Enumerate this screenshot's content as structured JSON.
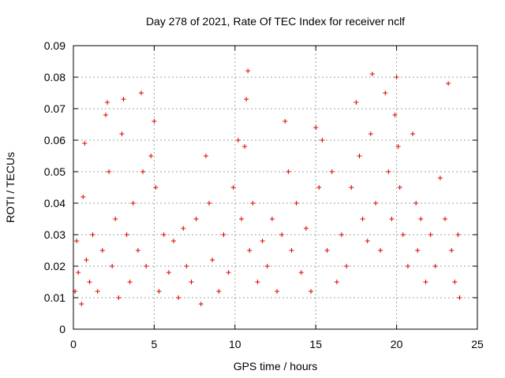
{
  "chart_data": {
    "type": "scatter",
    "title": "Day 278 of 2021, Rate Of TEC Index for receiver nclf",
    "xlabel": "GPS time / hours",
    "ylabel": "ROTI / TECUs",
    "xlim": [
      0,
      25
    ],
    "ylim": [
      0,
      0.09
    ],
    "x_ticks": [
      "0",
      "5",
      "10",
      "15",
      "20",
      "25"
    ],
    "x_tick_values": [
      0,
      5,
      10,
      15,
      20,
      25
    ],
    "y_ticks": [
      "0",
      "0.01",
      "0.02",
      "0.03",
      "0.04",
      "0.05",
      "0.06",
      "0.07",
      "0.08",
      "0.09"
    ],
    "y_tick_values": [
      0,
      0.01,
      0.02,
      0.03,
      0.04,
      0.05,
      0.06,
      0.07,
      0.08,
      0.09
    ],
    "grid": true,
    "marker": "+",
    "color": "#e00000",
    "series": [
      {
        "name": "ROTI",
        "x": [
          0.1,
          0.2,
          0.3,
          0.5,
          0.6,
          0.7,
          0.8,
          1.0,
          1.2,
          1.5,
          1.8,
          2.0,
          2.1,
          2.2,
          2.4,
          2.6,
          2.8,
          3.0,
          3.1,
          3.3,
          3.5,
          3.7,
          4.0,
          4.2,
          4.3,
          4.5,
          4.8,
          5.0,
          5.1,
          5.3,
          5.6,
          5.9,
          6.2,
          6.5,
          6.8,
          7.0,
          7.3,
          7.6,
          7.9,
          8.2,
          8.4,
          8.6,
          9.0,
          9.3,
          9.6,
          9.9,
          10.2,
          10.4,
          10.6,
          10.7,
          10.8,
          10.9,
          11.1,
          11.4,
          11.7,
          12.0,
          12.3,
          12.6,
          12.9,
          13.1,
          13.3,
          13.5,
          13.8,
          14.1,
          14.4,
          14.7,
          15.0,
          15.2,
          15.4,
          15.7,
          16.0,
          16.3,
          16.6,
          16.9,
          17.2,
          17.5,
          17.7,
          17.9,
          18.2,
          18.4,
          18.5,
          18.7,
          19.0,
          19.3,
          19.5,
          19.7,
          19.9,
          20.0,
          20.1,
          20.2,
          20.4,
          20.7,
          21.0,
          21.2,
          21.3,
          21.5,
          21.8,
          22.1,
          22.4,
          22.7,
          23.0,
          23.2,
          23.4,
          23.6,
          23.8,
          23.9
        ],
        "y": [
          0.012,
          0.028,
          0.018,
          0.008,
          0.042,
          0.059,
          0.022,
          0.015,
          0.03,
          0.012,
          0.025,
          0.068,
          0.072,
          0.05,
          0.02,
          0.035,
          0.01,
          0.062,
          0.073,
          0.03,
          0.015,
          0.04,
          0.025,
          0.075,
          0.05,
          0.02,
          0.055,
          0.066,
          0.045,
          0.012,
          0.03,
          0.018,
          0.028,
          0.01,
          0.032,
          0.02,
          0.015,
          0.035,
          0.008,
          0.055,
          0.04,
          0.022,
          0.012,
          0.03,
          0.018,
          0.045,
          0.06,
          0.035,
          0.058,
          0.073,
          0.082,
          0.025,
          0.04,
          0.015,
          0.028,
          0.02,
          0.035,
          0.012,
          0.03,
          0.066,
          0.05,
          0.025,
          0.04,
          0.018,
          0.032,
          0.012,
          0.064,
          0.045,
          0.06,
          0.025,
          0.05,
          0.015,
          0.03,
          0.02,
          0.045,
          0.072,
          0.055,
          0.035,
          0.028,
          0.062,
          0.081,
          0.04,
          0.025,
          0.075,
          0.05,
          0.035,
          0.068,
          0.08,
          0.058,
          0.045,
          0.03,
          0.02,
          0.062,
          0.04,
          0.025,
          0.035,
          0.015,
          0.03,
          0.02,
          0.048,
          0.035,
          0.078,
          0.025,
          0.015,
          0.03,
          0.01
        ]
      }
    ]
  }
}
